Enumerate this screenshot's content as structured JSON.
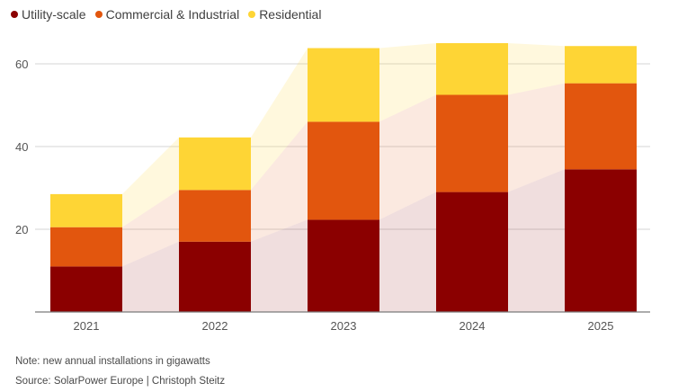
{
  "legend": [
    {
      "label": "Utility-scale",
      "color": "#8b0000"
    },
    {
      "label": "Commercial & Industrial",
      "color": "#e2560e"
    },
    {
      "label": "Residential",
      "color": "#fed535"
    }
  ],
  "note": "Note: new annual installations in gigawatts",
  "source": "Source: SolarPower Europe | Christoph Steitz",
  "chart_data": {
    "type": "bar",
    "stacked": true,
    "categories": [
      "2021",
      "2022",
      "2023",
      "2024",
      "2025"
    ],
    "series": [
      {
        "name": "Utility-scale",
        "color": "#8b0000",
        "values": [
          11,
          17,
          22.3,
          29,
          34.5
        ]
      },
      {
        "name": "Commercial & Industrial",
        "color": "#e2560e",
        "values": [
          9.5,
          12.5,
          23.7,
          23.5,
          20.8
        ]
      },
      {
        "name": "Residential",
        "color": "#fed535",
        "values": [
          8,
          12.7,
          17.8,
          12.5,
          9
        ]
      }
    ],
    "title": "",
    "xlabel": "",
    "ylabel": "",
    "ylim": [
      0,
      65
    ],
    "yticks": [
      20,
      40,
      60
    ],
    "grid": true,
    "legend_position": "top-left"
  }
}
